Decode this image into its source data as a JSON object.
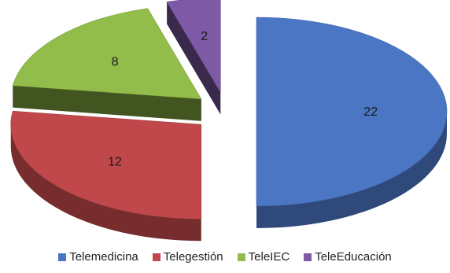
{
  "chart_data": {
    "type": "pie",
    "style": "3d-exploded",
    "series": [
      {
        "name": "Telemedicina",
        "value": 22,
        "color": "#4a76c4"
      },
      {
        "name": "Telegestión",
        "value": 12,
        "color": "#c0484a"
      },
      {
        "name": "TeleIEC",
        "value": 8,
        "color": "#93bd4a"
      },
      {
        "name": "TeleEducación",
        "value": 2,
        "color": "#7e5aa6"
      }
    ],
    "legend_position": "bottom"
  }
}
